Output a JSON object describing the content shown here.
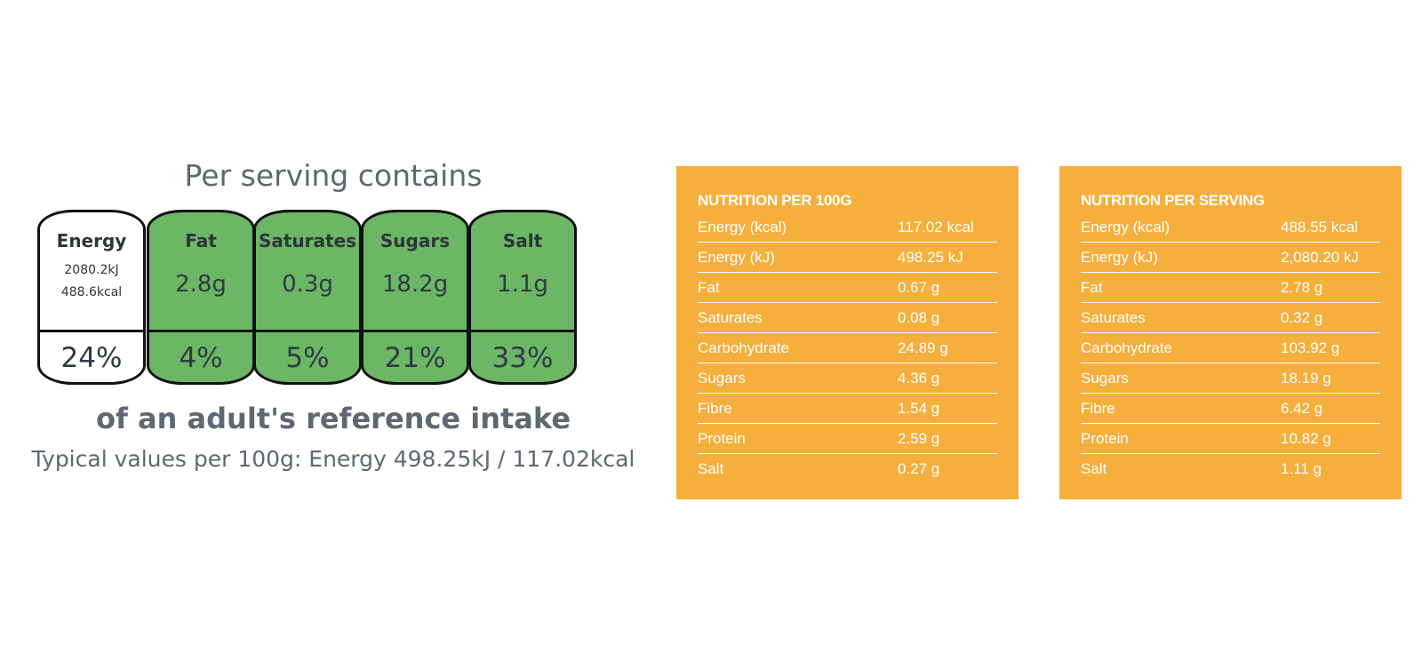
{
  "label": {
    "heading": "Per serving contains",
    "tiles": [
      {
        "name": "Energy",
        "kj": "2080.2kJ",
        "kcal": "488.6kcal",
        "percent": "24%"
      },
      {
        "name": "Fat",
        "amount": "2.8g",
        "percent": "4%"
      },
      {
        "name": "Saturates",
        "amount": "0.3g",
        "percent": "5%"
      },
      {
        "name": "Sugars",
        "amount": "18.2g",
        "percent": "21%"
      },
      {
        "name": "Salt",
        "amount": "1.1g",
        "percent": "33%"
      }
    ],
    "intake_text": "of an adult's reference intake",
    "typical_text": "Typical values per 100g: Energy 498.25kJ / 117.02kcal"
  },
  "panels": [
    {
      "title": "NUTRITION PER 100G",
      "rows": [
        {
          "name": "Energy (kcal)",
          "value": "117.02 kcal"
        },
        {
          "name": "Energy (kJ)",
          "value": "498.25 kJ"
        },
        {
          "name": "Fat",
          "value": "0.67 g"
        },
        {
          "name": "Saturates",
          "value": "0.08 g"
        },
        {
          "name": "Carbohydrate",
          "value": "24.89 g"
        },
        {
          "name": "Sugars",
          "value": "4.36 g"
        },
        {
          "name": "Fibre",
          "value": "1.54 g"
        },
        {
          "name": "Protein",
          "value": "2.59 g"
        },
        {
          "name": "Salt",
          "value": "0.27 g"
        }
      ]
    },
    {
      "title": "NUTRITION PER SERVING",
      "rows": [
        {
          "name": "Energy (kcal)",
          "value": "488.55 kcal"
        },
        {
          "name": "Energy (kJ)",
          "value": "2,080.20 kJ"
        },
        {
          "name": "Fat",
          "value": "2.78 g"
        },
        {
          "name": "Saturates",
          "value": "0.32 g"
        },
        {
          "name": "Carbohydrate",
          "value": "103.92 g"
        },
        {
          "name": "Sugars",
          "value": "18.19 g"
        },
        {
          "name": "Fibre",
          "value": "6.42 g"
        },
        {
          "name": "Protein",
          "value": "10.82 g"
        },
        {
          "name": "Salt",
          "value": "1.11 g"
        }
      ]
    }
  ],
  "colors": {
    "tile_green": "#6bb766",
    "panel_orange": "#f4af3c",
    "text_slate": "#5d6873"
  }
}
